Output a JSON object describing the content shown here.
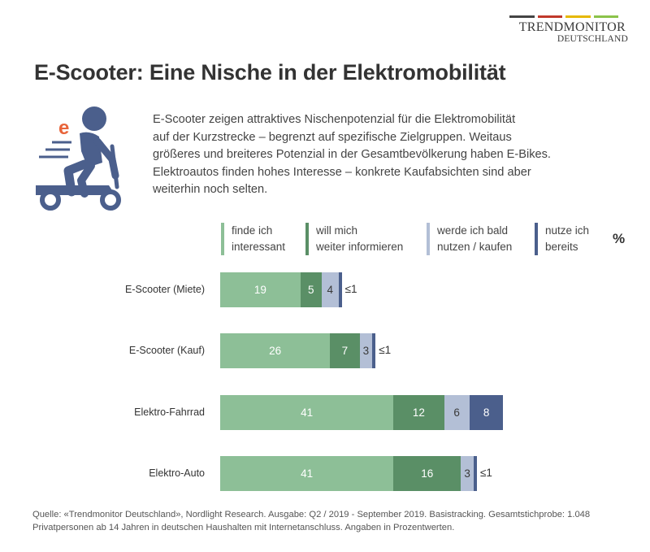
{
  "brand": {
    "name": "TRENDMONITOR",
    "subtitle": "DEUTSCHLAND",
    "line_colors": [
      "#444444",
      "#c0392b",
      "#e6b800",
      "#8bc34a"
    ]
  },
  "title": "E-Scooter: Eine Nische in der Elektromobilität",
  "icon": {
    "name": "e-scooter-rider-icon",
    "letter": "e",
    "letter_color": "#e8643a",
    "color": "#4b5f8c"
  },
  "description": [
    "E-Scooter zeigen attraktives Nischenpotenzial für die Elektromobilität",
    "auf der Kurzstrecke – begrenzt auf spezifische Zielgruppen. Weitaus",
    "größeres und breiteres Potenzial in der Gesamtbevölkerung haben E-Bikes.",
    "Elektroautos finden hohes Interesse – konkrete Kaufabsichten sind aber",
    "weiterhin noch selten."
  ],
  "chart_data": {
    "type": "bar",
    "orientation": "horizontal",
    "stacked": true,
    "unit": "%",
    "categories": [
      "E-Scooter (Miete)",
      "E-Scooter (Kauf)",
      "Elektro-Fahrrad",
      "Elektro-Auto"
    ],
    "series": [
      {
        "name": "finde ich interessant",
        "lines": [
          "finde ich",
          "interessant"
        ],
        "color": "#8dbf97",
        "values": [
          19,
          26,
          41,
          41
        ],
        "labels": [
          "19",
          "26",
          "41",
          "41"
        ]
      },
      {
        "name": "will mich weiter informieren",
        "lines": [
          "will mich",
          "weiter informieren"
        ],
        "color": "#5a8f66",
        "values": [
          5,
          7,
          12,
          16
        ],
        "labels": [
          "5",
          "7",
          "12",
          "16"
        ]
      },
      {
        "name": "werde ich bald nutzen / kaufen",
        "lines": [
          "werde ich bald",
          "nutzen / kaufen"
        ],
        "color": "#b3bfd6",
        "values": [
          4,
          3,
          6,
          3
        ],
        "labels": [
          "4",
          "3",
          "6",
          "3"
        ]
      },
      {
        "name": "nutze ich bereits",
        "lines": [
          "nutze ich",
          "bereits"
        ],
        "color": "#4b5f8c",
        "values": [
          1,
          1,
          8,
          1
        ],
        "labels": [
          "≤1",
          "≤1",
          "8",
          "≤1"
        ]
      }
    ]
  },
  "source": "Quelle: «Trendmonitor Deutschland», Nordlight Research. Ausgabe: Q2 / 2019 - September 2019. Basistracking. Gesamtstichprobe: 1.048 Privatpersonen ab 14 Jahren in deutschen Haushalten mit Internetanschluss. Angaben in Prozentwerten."
}
